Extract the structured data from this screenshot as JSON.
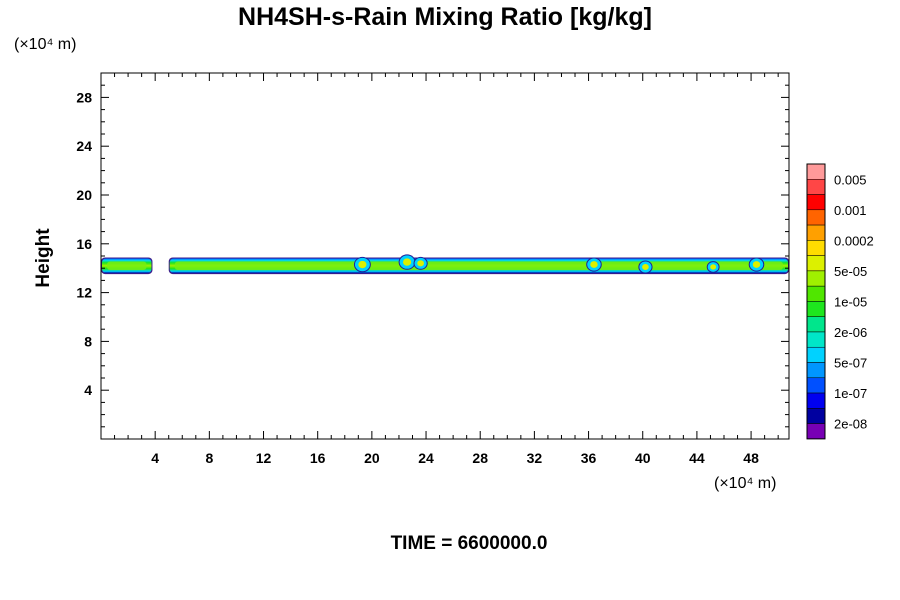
{
  "chart_data": {
    "type": "heatmap",
    "title": "NH4SH-s-Rain Mixing Ratio [kg/kg]",
    "ylabel": "Height",
    "x_unit": "(×10⁴ m)",
    "y_unit": "(×10⁴ m)",
    "xlim": [
      0,
      50.8
    ],
    "ylim": [
      0,
      30
    ],
    "x_ticks": [
      "4",
      "8",
      "12",
      "16",
      "20",
      "24",
      "28",
      "32",
      "36",
      "40",
      "44",
      "48"
    ],
    "y_ticks": [
      "4",
      "8",
      "12",
      "16",
      "20",
      "24",
      "28"
    ],
    "x_tick_values": [
      4,
      8,
      12,
      16,
      20,
      24,
      28,
      32,
      36,
      40,
      44,
      48
    ],
    "y_tick_values": [
      4,
      8,
      12,
      16,
      20,
      24,
      28
    ],
    "time_label": "TIME = 6600000.0",
    "legend": {
      "levels": [
        "0.005",
        "0.001",
        "0.0002",
        "5e-05",
        "1e-05",
        "2e-06",
        "5e-07",
        "1e-07",
        "2e-08"
      ],
      "colors": [
        "#ff9a9a",
        "#ff4646",
        "#ff0000",
        "#ff6400",
        "#ffa000",
        "#ffdc00",
        "#dcf000",
        "#a0f000",
        "#50e600",
        "#1ee61e",
        "#00e68c",
        "#00e6c8",
        "#00d2ff",
        "#0096ff",
        "#0050ff",
        "#0000f0",
        "#0000a0",
        "#7800b4"
      ]
    },
    "band": {
      "y_bottom": 13.6,
      "y_top": 14.8,
      "y_core_bottom": 13.85,
      "y_core_top": 14.55,
      "gaps": [
        [
          3.8,
          5.0
        ]
      ],
      "bumps": [
        {
          "x": 22.6,
          "y": 14.5,
          "r": 0.55
        },
        {
          "x": 23.6,
          "y": 14.4,
          "r": 0.45
        },
        {
          "x": 19.3,
          "y": 14.3,
          "r": 0.55
        },
        {
          "x": 36.4,
          "y": 14.3,
          "r": 0.5
        },
        {
          "x": 40.2,
          "y": 14.1,
          "r": 0.45
        },
        {
          "x": 45.2,
          "y": 14.1,
          "r": 0.4
        },
        {
          "x": 48.4,
          "y": 14.3,
          "r": 0.5
        }
      ]
    }
  }
}
